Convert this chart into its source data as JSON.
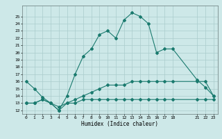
{
  "title": "",
  "xlabel": "Humidex (Indice chaleur)",
  "bg_color": "#cde8e8",
  "grid_color": "#aacccc",
  "line_color": "#1a7a6e",
  "xlim": [
    -0.5,
    23.5
  ],
  "ylim": [
    11.5,
    26.5
  ],
  "yticks": [
    12,
    13,
    14,
    15,
    16,
    17,
    18,
    19,
    20,
    21,
    22,
    23,
    24,
    25
  ],
  "xtick_positions": [
    0,
    1,
    2,
    3,
    4,
    5,
    6,
    7,
    8,
    9,
    10,
    11,
    12,
    13,
    14,
    15,
    16,
    17,
    18,
    21,
    22,
    23
  ],
  "xtick_labels": [
    "0",
    "1",
    "2",
    "3",
    "4",
    "5",
    "6",
    "7",
    "8",
    "9",
    "10",
    "11",
    "12",
    "13",
    "14",
    "15",
    "16",
    "17",
    "18",
    "21",
    "22",
    "23"
  ],
  "series1_x": [
    0,
    1,
    2,
    3,
    4,
    5,
    6,
    7,
    8,
    9,
    10,
    11,
    12,
    13,
    14,
    15,
    16,
    17,
    18,
    21,
    22,
    23
  ],
  "series1_y": [
    16,
    15,
    13.8,
    13,
    12,
    14,
    17,
    19.5,
    20.5,
    22.5,
    23,
    22,
    24.5,
    25.5,
    25,
    24,
    20,
    20.5,
    20.5,
    16.2,
    15.2,
    14
  ],
  "series2_x": [
    0,
    1,
    2,
    3,
    4,
    5,
    6,
    7,
    8,
    9,
    10,
    11,
    12,
    13,
    14,
    15,
    16,
    17,
    18,
    21,
    22,
    23
  ],
  "series2_y": [
    13,
    13,
    13.5,
    13,
    12,
    13,
    13.5,
    14,
    14.5,
    15,
    15.5,
    15.5,
    15.5,
    16,
    16,
    16,
    16,
    16,
    16,
    16,
    16,
    14
  ],
  "series3_x": [
    0,
    1,
    2,
    3,
    4,
    5,
    6,
    7,
    8,
    9,
    10,
    11,
    12,
    13,
    14,
    15,
    16,
    17,
    18,
    21,
    22,
    23
  ],
  "series3_y": [
    13,
    13,
    13.5,
    13,
    12.5,
    13,
    13,
    13.5,
    13.5,
    13.5,
    13.5,
    13.5,
    13.5,
    13.5,
    13.5,
    13.5,
    13.5,
    13.5,
    13.5,
    13.5,
    13.5,
    13.5
  ]
}
